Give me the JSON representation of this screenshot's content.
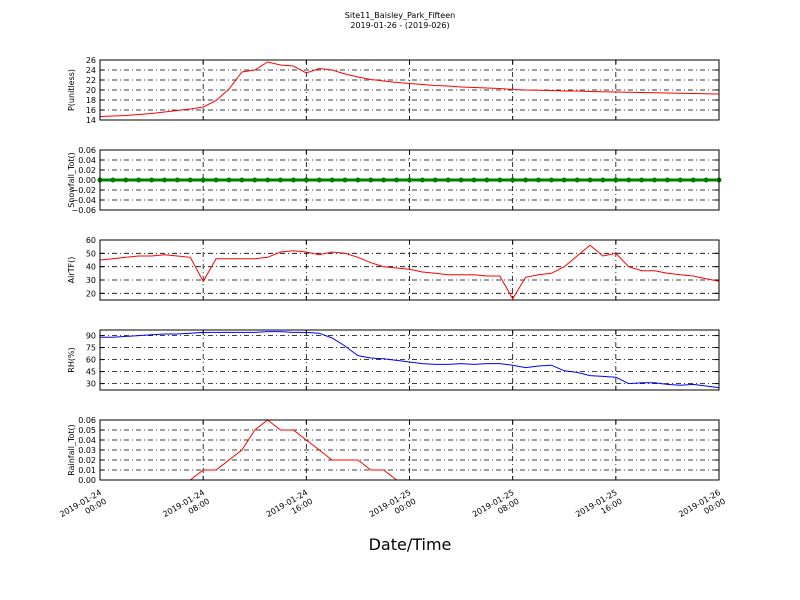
{
  "title": "Site11_Baisley_Park_Fifteen",
  "subtitle": "2019-01-26 - (2019-026)",
  "xlabel": "Date/Time",
  "x": [
    "2019-01-24 00:00",
    "2019-01-24 01:00",
    "2019-01-24 02:00",
    "2019-01-24 03:00",
    "2019-01-24 04:00",
    "2019-01-24 05:00",
    "2019-01-24 06:00",
    "2019-01-24 07:00",
    "2019-01-24 08:00",
    "2019-01-24 09:00",
    "2019-01-24 10:00",
    "2019-01-24 11:00",
    "2019-01-24 12:00",
    "2019-01-24 13:00",
    "2019-01-24 14:00",
    "2019-01-24 15:00",
    "2019-01-24 16:00",
    "2019-01-24 17:00",
    "2019-01-24 18:00",
    "2019-01-24 19:00",
    "2019-01-24 20:00",
    "2019-01-24 21:00",
    "2019-01-24 22:00",
    "2019-01-24 23:00",
    "2019-01-25 00:00",
    "2019-01-25 01:00",
    "2019-01-25 02:00",
    "2019-01-25 03:00",
    "2019-01-25 04:00",
    "2019-01-25 05:00",
    "2019-01-25 06:00",
    "2019-01-25 07:00",
    "2019-01-25 08:00",
    "2019-01-25 09:00",
    "2019-01-25 10:00",
    "2019-01-25 11:00",
    "2019-01-25 12:00",
    "2019-01-25 13:00",
    "2019-01-25 14:00",
    "2019-01-25 15:00",
    "2019-01-25 16:00",
    "2019-01-25 17:00",
    "2019-01-25 18:00",
    "2019-01-25 19:00",
    "2019-01-25 20:00",
    "2019-01-25 21:00",
    "2019-01-25 22:00",
    "2019-01-25 23:00",
    "2019-01-26 00:00"
  ],
  "xlim": [
    "2019-01-24 00:00",
    "2019-01-26 00:00"
  ],
  "xticks": [
    "2019-01-24 00:00",
    "2019-01-24 08:00",
    "2019-01-24 16:00",
    "2019-01-25 00:00",
    "2019-01-25 08:00",
    "2019-01-25 16:00",
    "2019-01-26 00:00"
  ],
  "grid": true,
  "chart_data": [
    {
      "type": "line",
      "ylabel": "P(unitless)",
      "ylim": [
        14,
        26
      ],
      "yticks": [
        14,
        16,
        18,
        20,
        22,
        24,
        26
      ],
      "series": [
        {
          "color": "#ff0000",
          "values": [
            14.7,
            14.8,
            14.9,
            15.1,
            15.3,
            15.6,
            15.9,
            16.2,
            16.6,
            17.9,
            20.2,
            23.6,
            24.0,
            25.6,
            25.0,
            24.8,
            23.4,
            24.3,
            24.0,
            23.2,
            22.6,
            22.1,
            21.8,
            21.5,
            21.3,
            21.1,
            20.9,
            20.8,
            20.6,
            20.5,
            20.4,
            20.3,
            20.1,
            20.0,
            19.95,
            19.9,
            19.8,
            19.8,
            19.7,
            19.65,
            19.6,
            19.55,
            19.5,
            19.45,
            19.4,
            19.35,
            19.3,
            19.25,
            19.2
          ]
        }
      ]
    },
    {
      "type": "dotline",
      "ylabel": "Snowfall_Tot()",
      "ylim": [
        -0.06,
        0.06
      ],
      "yticks": [
        {
          "value": -0.06,
          "label": "−0.06"
        },
        {
          "value": -0.04,
          "label": "−0.04"
        },
        {
          "value": -0.02,
          "label": "−0.02"
        },
        {
          "value": 0,
          "label": "0.00"
        },
        0.02,
        0.04,
        0.06
      ],
      "series": [
        {
          "color": "#008000",
          "values": [
            0,
            0,
            0,
            0,
            0,
            0,
            0,
            0,
            0,
            0,
            0,
            0,
            0,
            0,
            0,
            0,
            0,
            0,
            0,
            0,
            0,
            0,
            0,
            0,
            0,
            0,
            0,
            0,
            0,
            0,
            0,
            0,
            0,
            0,
            0,
            0,
            0,
            0,
            0,
            0,
            0,
            0,
            0,
            0,
            0,
            0,
            0,
            0,
            0
          ]
        }
      ]
    },
    {
      "type": "line",
      "ylabel": "AirTF()",
      "ylim": [
        15,
        60
      ],
      "yticks": [
        20,
        30,
        40,
        50,
        60
      ],
      "series": [
        {
          "color": "#ff0000",
          "values": [
            45,
            46,
            47,
            48,
            48,
            49,
            48,
            47,
            29,
            46,
            46,
            46,
            46,
            47,
            51,
            52,
            51,
            49,
            51,
            50,
            47,
            43,
            40,
            39,
            38,
            36,
            35,
            34,
            34,
            34,
            33,
            33,
            16,
            32,
            34,
            35,
            40,
            48,
            56,
            48,
            50,
            40,
            37,
            37,
            35,
            34,
            33,
            31,
            29
          ]
        }
      ]
    },
    {
      "type": "line",
      "ylabel": "RH(%)",
      "ylim": [
        22,
        97
      ],
      "yticks": [
        30,
        45,
        60,
        75,
        90
      ],
      "series": [
        {
          "color": "#0000ff",
          "values": [
            88,
            88,
            89,
            90,
            91,
            92,
            92,
            93,
            94,
            94,
            94,
            94,
            94,
            95,
            95,
            94,
            94,
            93,
            87,
            77,
            65,
            62,
            61,
            59,
            57,
            55,
            54,
            54,
            55,
            54,
            55,
            55,
            53,
            50,
            52,
            53,
            46,
            44,
            40,
            39,
            38,
            30,
            31,
            31,
            29,
            28,
            29,
            27,
            25
          ]
        }
      ]
    },
    {
      "type": "line",
      "ylabel": "Rainfall_Tot()",
      "ylim": [
        0,
        0.06
      ],
      "yticks": [
        {
          "value": 0,
          "label": "0.00"
        },
        0.01,
        0.02,
        0.03,
        0.04,
        0.05,
        0.06
      ],
      "series": [
        {
          "color": "#ff0000",
          "values": [
            0,
            0,
            0,
            0,
            0,
            0,
            0,
            0,
            0.01,
            0.01,
            0.02,
            0.03,
            0.05,
            0.06,
            0.05,
            0.05,
            0.04,
            0.03,
            0.02,
            0.02,
            0.02,
            0.01,
            0.01,
            0,
            0,
            0,
            0,
            0,
            0,
            0,
            0,
            0,
            0,
            0,
            0,
            0,
            0,
            0,
            0,
            0,
            0,
            0,
            0,
            0,
            0,
            0,
            0,
            0,
            0
          ]
        }
      ]
    }
  ]
}
